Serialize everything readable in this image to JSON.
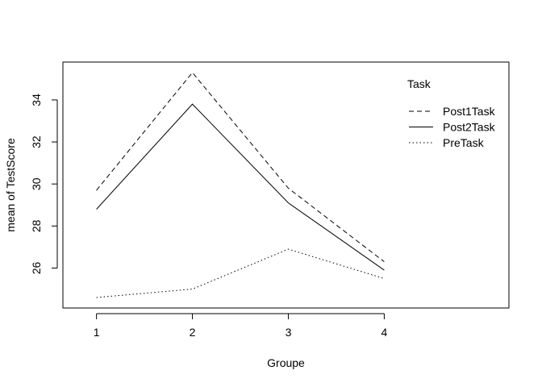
{
  "chart_data": {
    "type": "line",
    "xlabel": "Groupe",
    "ylabel": "mean of  TestScore",
    "categories": [
      "1",
      "2",
      "3",
      "4"
    ],
    "x": [
      1,
      2,
      3,
      4
    ],
    "xlim": [
      0.65,
      5.3
    ],
    "ylim": [
      24.1,
      35.8
    ],
    "yticks": [
      26,
      28,
      30,
      32,
      34
    ],
    "grid": false,
    "legend_title": "Task",
    "legend_position": "top-right",
    "series": [
      {
        "name": "Post1Task",
        "linetype": "dashed",
        "values": [
          29.7,
          35.3,
          29.8,
          26.3
        ]
      },
      {
        "name": "Post2Task",
        "linetype": "solid",
        "values": [
          28.8,
          33.8,
          29.1,
          25.9
        ]
      },
      {
        "name": "PreTask",
        "linetype": "dotted",
        "values": [
          24.6,
          25.0,
          26.9,
          25.5
        ]
      }
    ]
  }
}
